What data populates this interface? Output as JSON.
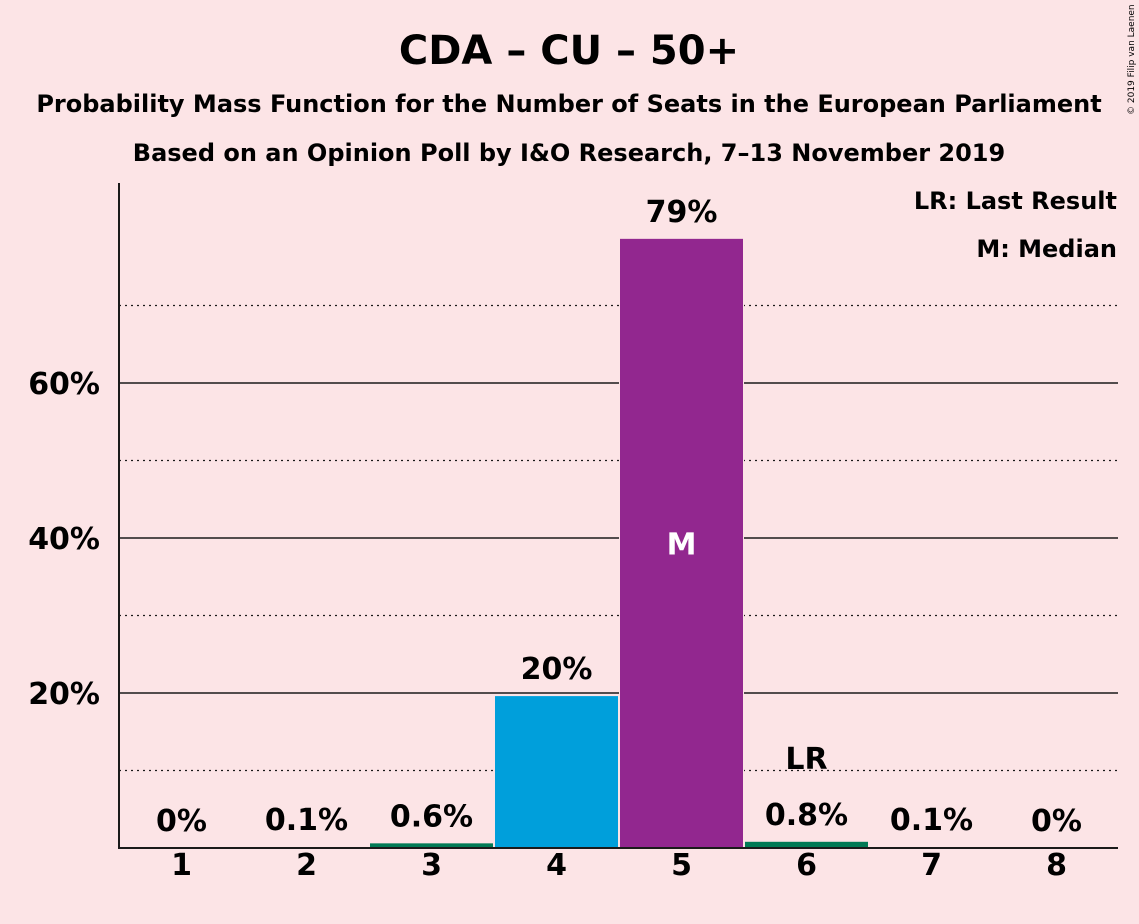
{
  "chart_data": {
    "type": "bar",
    "title": "CDA – CU – 50+",
    "subtitle_lines": [
      "Probability Mass Function for the Number of Seats in the European Parliament",
      "Based on an Opinion Poll by I&O Research, 7–13 November 2019"
    ],
    "copyright": "© 2019 Filip van Laenen",
    "categories": [
      "1",
      "2",
      "3",
      "4",
      "5",
      "6",
      "7",
      "8"
    ],
    "values": [
      0,
      0.1,
      0.6,
      19.6,
      78.6,
      0.8,
      0.1,
      0
    ],
    "value_labels": [
      "0%",
      "0.1%",
      "0.6%",
      "20%",
      "79%",
      "0.8%",
      "0.1%",
      "0%"
    ],
    "bar_colors": [
      "#009FDB",
      "#009FDB",
      "#007A55",
      "#009FDB",
      "#92278F",
      "#007A55",
      "#009FDB",
      "#009FDB"
    ],
    "ylim": [
      0,
      85
    ],
    "y_ticks": [
      20,
      40,
      60
    ],
    "y_tick_labels": [
      "20%",
      "40%",
      "60%"
    ],
    "y_minor_gridlines": [
      10,
      30,
      50,
      70
    ],
    "median_category": "5",
    "median_marker": "M",
    "last_result_category": "6",
    "last_result_marker": "LR",
    "legend": {
      "placement": "top-right",
      "items": [
        "LR: Last Result",
        "M: Median"
      ]
    },
    "grid": true
  }
}
